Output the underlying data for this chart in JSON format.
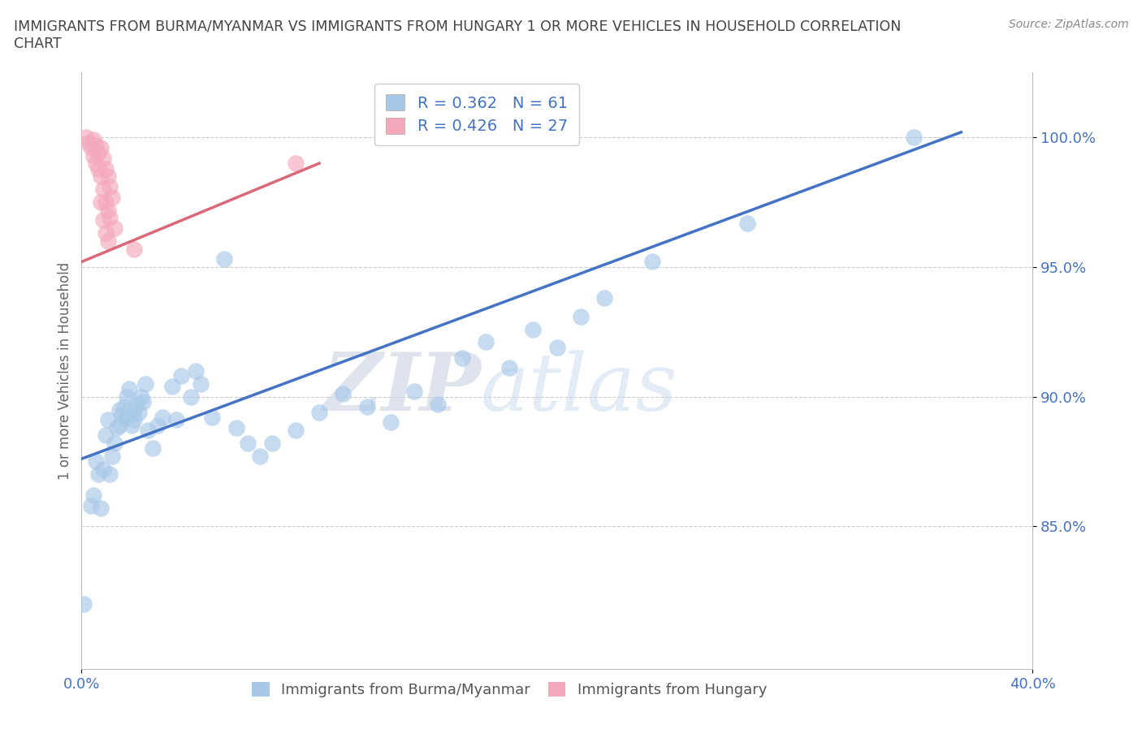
{
  "title_line1": "IMMIGRANTS FROM BURMA/MYANMAR VS IMMIGRANTS FROM HUNGARY 1 OR MORE VEHICLES IN HOUSEHOLD CORRELATION",
  "title_line2": "CHART",
  "source": "Source: ZipAtlas.com",
  "ylabel": "1 or more Vehicles in Household",
  "xlim": [
    0.0,
    0.4
  ],
  "ylim": [
    0.795,
    1.025
  ],
  "xticks": [
    0.0,
    0.4
  ],
  "xticklabels": [
    "0.0%",
    "40.0%"
  ],
  "yticks": [
    0.85,
    0.9,
    0.95,
    1.0
  ],
  "yticklabels": [
    "85.0%",
    "90.0%",
    "95.0%",
    "100.0%"
  ],
  "grid_color": "#cccccc",
  "background_color": "#ffffff",
  "watermark_ZIP": "ZIP",
  "watermark_atlas": "atlas",
  "legend_R1": "R = 0.362",
  "legend_N1": "N = 61",
  "legend_R2": "R = 0.426",
  "legend_N2": "N = 27",
  "blue_color": "#a8c8e8",
  "pink_color": "#f4a8bc",
  "line_blue": "#4472c4",
  "line_pink": "#d96878",
  "tick_color": "#4472c4",
  "label_color": "#666666",
  "blue_line_x": [
    0.0,
    0.37
  ],
  "blue_line_y": [
    0.876,
    1.002
  ],
  "pink_line_x": [
    0.0,
    0.1
  ],
  "pink_line_y": [
    0.952,
    0.99
  ],
  "blue_scatter": [
    [
      0.001,
      0.82
    ],
    [
      0.004,
      0.858
    ],
    [
      0.005,
      0.862
    ],
    [
      0.006,
      0.875
    ],
    [
      0.007,
      0.87
    ],
    [
      0.008,
      0.857
    ],
    [
      0.009,
      0.872
    ],
    [
      0.01,
      0.885
    ],
    [
      0.011,
      0.891
    ],
    [
      0.012,
      0.87
    ],
    [
      0.013,
      0.877
    ],
    [
      0.014,
      0.882
    ],
    [
      0.015,
      0.888
    ],
    [
      0.016,
      0.889
    ],
    [
      0.016,
      0.895
    ],
    [
      0.017,
      0.893
    ],
    [
      0.018,
      0.896
    ],
    [
      0.019,
      0.9
    ],
    [
      0.019,
      0.892
    ],
    [
      0.02,
      0.903
    ],
    [
      0.021,
      0.889
    ],
    [
      0.022,
      0.895
    ],
    [
      0.022,
      0.891
    ],
    [
      0.023,
      0.897
    ],
    [
      0.024,
      0.894
    ],
    [
      0.025,
      0.9
    ],
    [
      0.026,
      0.898
    ],
    [
      0.027,
      0.905
    ],
    [
      0.028,
      0.887
    ],
    [
      0.03,
      0.88
    ],
    [
      0.032,
      0.889
    ],
    [
      0.034,
      0.892
    ],
    [
      0.038,
      0.904
    ],
    [
      0.04,
      0.891
    ],
    [
      0.042,
      0.908
    ],
    [
      0.046,
      0.9
    ],
    [
      0.048,
      0.91
    ],
    [
      0.05,
      0.905
    ],
    [
      0.055,
      0.892
    ],
    [
      0.06,
      0.953
    ],
    [
      0.065,
      0.888
    ],
    [
      0.07,
      0.882
    ],
    [
      0.075,
      0.877
    ],
    [
      0.08,
      0.882
    ],
    [
      0.09,
      0.887
    ],
    [
      0.1,
      0.894
    ],
    [
      0.11,
      0.901
    ],
    [
      0.12,
      0.896
    ],
    [
      0.13,
      0.89
    ],
    [
      0.14,
      0.902
    ],
    [
      0.15,
      0.897
    ],
    [
      0.16,
      0.915
    ],
    [
      0.17,
      0.921
    ],
    [
      0.18,
      0.911
    ],
    [
      0.19,
      0.926
    ],
    [
      0.2,
      0.919
    ],
    [
      0.21,
      0.931
    ],
    [
      0.22,
      0.938
    ],
    [
      0.24,
      0.952
    ],
    [
      0.28,
      0.967
    ],
    [
      0.35,
      1.0
    ]
  ],
  "pink_scatter": [
    [
      0.002,
      1.0
    ],
    [
      0.003,
      0.998
    ],
    [
      0.004,
      0.996
    ],
    [
      0.005,
      0.999
    ],
    [
      0.005,
      0.993
    ],
    [
      0.006,
      0.997
    ],
    [
      0.006,
      0.99
    ],
    [
      0.007,
      0.994
    ],
    [
      0.007,
      0.988
    ],
    [
      0.008,
      0.996
    ],
    [
      0.008,
      0.985
    ],
    [
      0.008,
      0.975
    ],
    [
      0.009,
      0.992
    ],
    [
      0.009,
      0.98
    ],
    [
      0.009,
      0.968
    ],
    [
      0.01,
      0.988
    ],
    [
      0.01,
      0.975
    ],
    [
      0.01,
      0.963
    ],
    [
      0.011,
      0.985
    ],
    [
      0.011,
      0.972
    ],
    [
      0.011,
      0.96
    ],
    [
      0.012,
      0.981
    ],
    [
      0.012,
      0.969
    ],
    [
      0.013,
      0.977
    ],
    [
      0.014,
      0.965
    ],
    [
      0.022,
      0.957
    ],
    [
      0.09,
      0.99
    ]
  ]
}
